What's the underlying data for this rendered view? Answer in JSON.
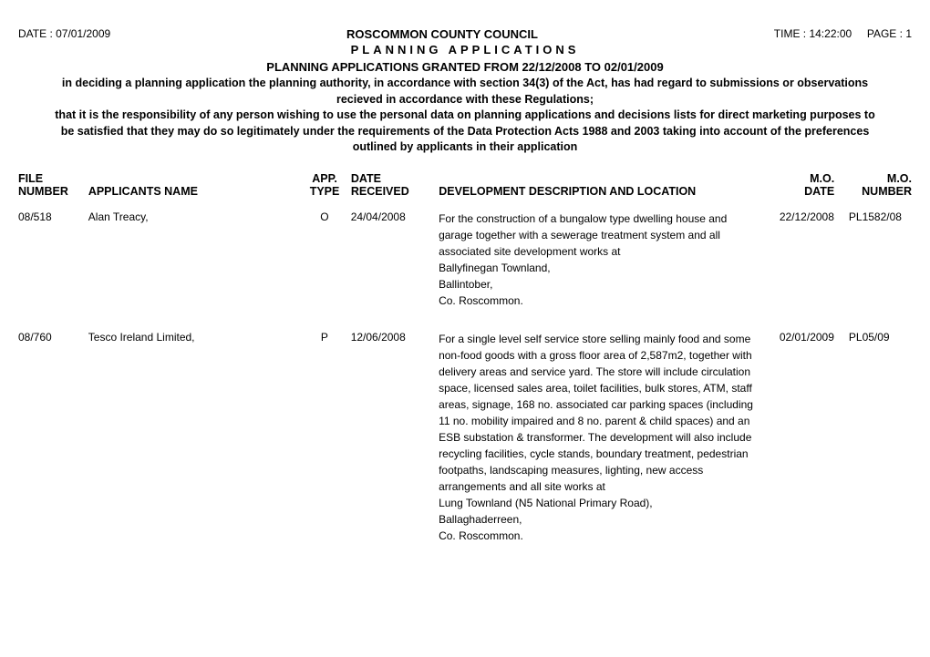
{
  "header": {
    "date_label": "DATE : 07/01/2009",
    "title": "ROSCOMMON COUNTY COUNCIL",
    "time_label": "TIME : 14:22:00",
    "page_label": "PAGE : 1",
    "subtitle": "PLANNING APPLICATIONS",
    "subheading": "PLANNING APPLICATIONS GRANTED FROM 22/12/2008 TO 02/01/2009",
    "paragraph": "in deciding a planning application the planning authority, in accordance with section 34(3) of the Act, has had regard to submissions or observations recieved in accordance with these Regulations;",
    "paragraph2": "that it is the responsibility of any person wishing to use the personal data on planning applications and decisions lists for direct marketing purposes to be satisfied that they may do so legitimately under the requirements of the Data Protection Acts 1988 and 2003 taking into account of the preferences outlined by applicants in their application"
  },
  "columns": {
    "file_l1": "FILE",
    "file_l2": "NUMBER",
    "applicant": "APPLICANTS NAME",
    "apptype_l1": "APP.",
    "apptype_l2": "TYPE",
    "date_l1": "DATE",
    "date_l2": "RECEIVED",
    "desc": "DEVELOPMENT DESCRIPTION AND LOCATION",
    "modate_l1": "M.O.",
    "modate_l2": "DATE",
    "monum_l1": "M.O.",
    "monum_l2": "NUMBER"
  },
  "rows": [
    {
      "file_number": "08/518",
      "applicant": "Alan Treacy,",
      "app_type": "O",
      "date_received": "24/04/2008",
      "description": "For the construction of a bungalow type dwelling house and garage together with a sewerage treatment system and all associated site development works at",
      "location": [
        "Ballyfinegan Townland,",
        "Ballintober,",
        "Co. Roscommon."
      ],
      "mo_date": "22/12/2008",
      "mo_number": "PL1582/08"
    },
    {
      "file_number": "08/760",
      "applicant": "Tesco Ireland Limited,",
      "app_type": "P",
      "date_received": "12/06/2008",
      "description": "For a single level self service store selling mainly food and some non-food goods with a gross floor area of 2,587m2, together with delivery areas and service yard. The store will include circulation space, licensed sales area, toilet facilities, bulk stores, ATM, staff areas, signage, 168 no. associated car parking spaces (including 11 no. mobility impaired and 8 no. parent & child spaces) and an ESB substation & transformer. The development will also include recycling facilities, cycle stands, boundary treatment, pedestrian footpaths, landscaping measures, lighting, new access arrangements and all site works at",
      "location": [
        "Lung Townland (N5 National Primary Road),",
        "Ballaghaderreen,",
        "Co. Roscommon."
      ],
      "mo_date": "02/01/2009",
      "mo_number": "PL05/09"
    }
  ]
}
